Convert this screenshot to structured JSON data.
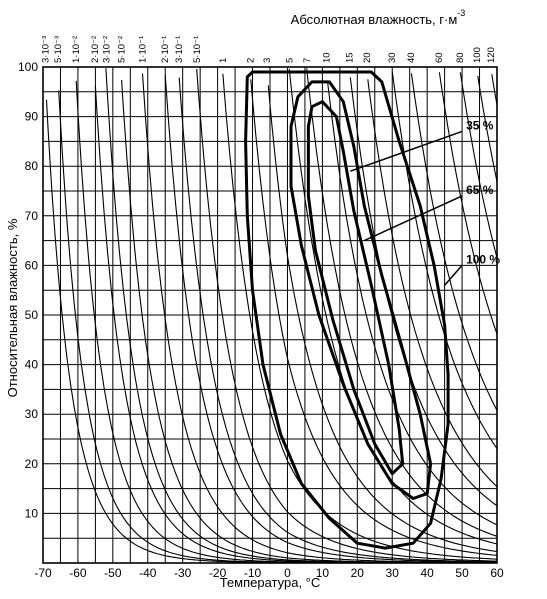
{
  "chart_data": {
    "type": "line",
    "title": "",
    "xlabel": "Температура, °C",
    "ylabel": "Относительная влажность, %",
    "top_axis_label": "Абсолютная влажность, г·м",
    "top_axis_label_sup": "-3",
    "xlim": [
      -70,
      60
    ],
    "ylim": [
      0,
      100
    ],
    "x_ticks": [
      -70,
      -60,
      -50,
      -40,
      -30,
      -20,
      -10,
      0,
      10,
      20,
      30,
      40,
      50,
      60
    ],
    "y_ticks": [
      10,
      20,
      30,
      40,
      50,
      60,
      70,
      80,
      90,
      100
    ],
    "grid": true,
    "absolute_humidity_lines": [
      {
        "label": "3·10⁻³",
        "value": 0.003
      },
      {
        "label": "5·10⁻³",
        "value": 0.005
      },
      {
        "label": "1·10⁻²",
        "value": 0.01
      },
      {
        "label": "2·10⁻²",
        "value": 0.02
      },
      {
        "label": "3·10⁻²",
        "value": 0.03
      },
      {
        "label": "5·10⁻²",
        "value": 0.05
      },
      {
        "label": "1·10⁻¹",
        "value": 0.1
      },
      {
        "label": "2·10⁻¹",
        "value": 0.2
      },
      {
        "label": "3·10⁻¹",
        "value": 0.3
      },
      {
        "label": "5·10⁻¹",
        "value": 0.5
      },
      {
        "label": "1",
        "value": 1
      },
      {
        "label": "2",
        "value": 2
      },
      {
        "label": "3",
        "value": 3
      },
      {
        "label": "5",
        "value": 5
      },
      {
        "label": "7",
        "value": 7
      },
      {
        "label": "10",
        "value": 10
      },
      {
        "label": "15",
        "value": 15
      },
      {
        "label": "20",
        "value": 20
      },
      {
        "label": "30",
        "value": 30
      },
      {
        "label": "40",
        "value": 40
      },
      {
        "label": "60",
        "value": 60
      },
      {
        "label": "80",
        "value": 80
      },
      {
        "label": "100",
        "value": 100
      },
      {
        "label": "120",
        "value": 120
      }
    ],
    "series": [
      {
        "name": "100 %",
        "points": [
          [
            -11.5,
            98
          ],
          [
            -10,
            99
          ],
          [
            -5,
            99
          ],
          [
            5,
            99
          ],
          [
            15,
            99
          ],
          [
            24,
            99
          ],
          [
            27,
            97
          ],
          [
            32,
            85
          ],
          [
            38,
            72
          ],
          [
            42,
            60
          ],
          [
            45,
            48
          ],
          [
            46,
            38
          ],
          [
            46,
            28
          ],
          [
            44,
            17
          ],
          [
            41,
            8
          ],
          [
            36,
            4
          ],
          [
            28,
            3
          ],
          [
            20,
            4
          ],
          [
            12,
            9
          ],
          [
            4,
            16
          ],
          [
            -2,
            26
          ],
          [
            -7,
            40
          ],
          [
            -10,
            55
          ],
          [
            -11.5,
            70
          ],
          [
            -12,
            85
          ],
          [
            -11.5,
            98
          ]
        ]
      },
      {
        "name": "65 %",
        "points": [
          [
            1,
            88
          ],
          [
            3,
            94
          ],
          [
            7,
            97
          ],
          [
            12,
            97
          ],
          [
            16,
            93
          ],
          [
            19,
            84
          ],
          [
            22,
            72
          ],
          [
            27,
            58
          ],
          [
            33,
            43
          ],
          [
            38,
            30
          ],
          [
            41,
            20
          ],
          [
            40,
            14
          ],
          [
            36,
            13
          ],
          [
            30,
            16
          ],
          [
            23,
            24
          ],
          [
            16,
            36
          ],
          [
            9,
            50
          ],
          [
            4,
            64
          ],
          [
            1,
            76
          ],
          [
            1,
            88
          ]
        ]
      },
      {
        "name": "35 %",
        "points": [
          [
            6,
            88
          ],
          [
            7,
            92
          ],
          [
            10,
            93
          ],
          [
            14,
            90
          ],
          [
            16,
            83
          ],
          [
            19,
            71
          ],
          [
            24,
            56
          ],
          [
            29,
            40
          ],
          [
            32,
            27
          ],
          [
            33,
            20
          ],
          [
            30,
            18
          ],
          [
            25,
            24
          ],
          [
            19,
            35
          ],
          [
            13,
            49
          ],
          [
            8,
            63
          ],
          [
            6,
            74
          ],
          [
            6,
            88
          ]
        ]
      }
    ],
    "annotations": [
      {
        "text": "35 %",
        "x": 50,
        "y": 87
      },
      {
        "text": "65 %",
        "x": 50,
        "y": 74
      },
      {
        "text": "100 %",
        "x": 50,
        "y": 60
      }
    ]
  }
}
